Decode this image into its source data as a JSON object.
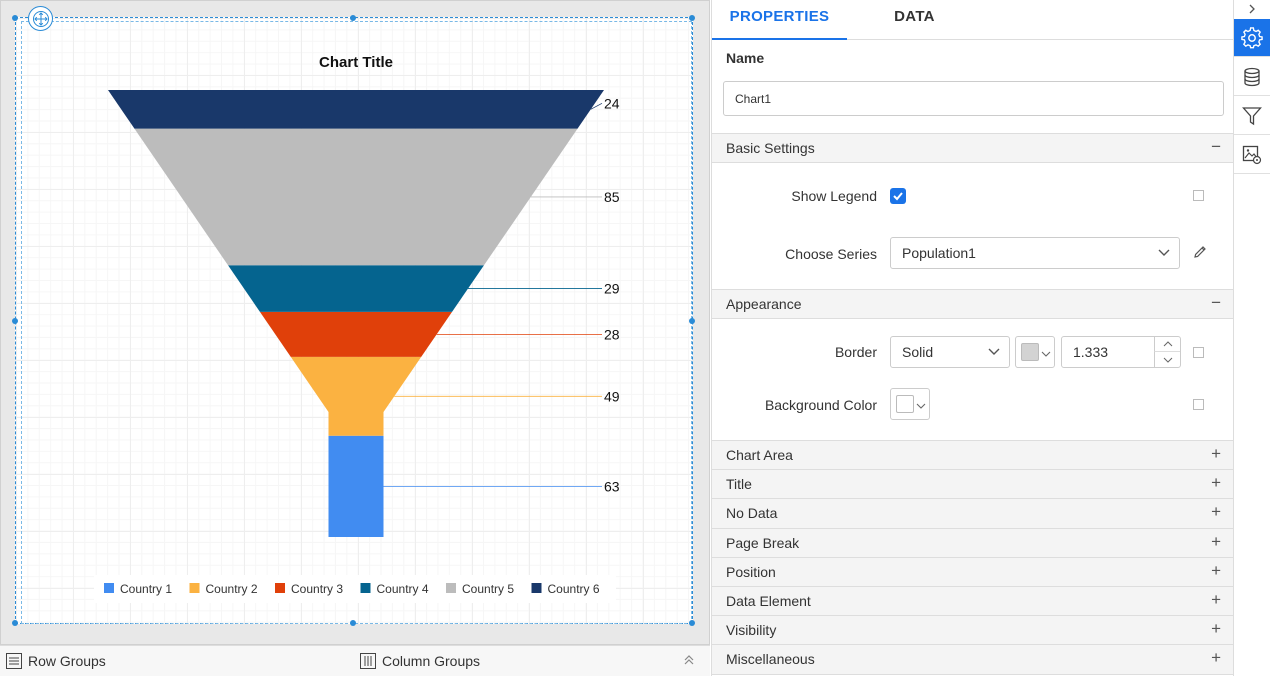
{
  "chart_data": {
    "type": "funnel",
    "title": "Chart Title",
    "categories": [
      "Country 1",
      "Country 2",
      "Country 3",
      "Country 4",
      "Country 5",
      "Country 6"
    ],
    "values": [
      63,
      49,
      28,
      29,
      85,
      24
    ],
    "colors": [
      "#418cf1",
      "#fbb241",
      "#e0400a",
      "#05648f",
      "#bcbcbc",
      "#19386a"
    ],
    "legend_position": "bottom",
    "data_labels": true
  },
  "bottom_bar": {
    "row_groups": "Row Groups",
    "column_groups": "Column Groups"
  },
  "panel": {
    "tabs": {
      "properties": "PROPERTIES",
      "data": "DATA"
    },
    "name_label": "Name",
    "name_value": "Chart1",
    "sections": {
      "basic_settings": "Basic Settings",
      "appearance": "Appearance"
    },
    "basic": {
      "show_legend_label": "Show Legend",
      "show_legend": true,
      "choose_series_label": "Choose Series",
      "choose_series_value": "Population1"
    },
    "appearance": {
      "border_label": "Border",
      "border_style": "Solid",
      "border_color": "#d3d3d3",
      "border_width": "1.333",
      "background_color_label": "Background Color",
      "background_color": "#ffffff"
    },
    "collapsed_sections": [
      "Chart Area",
      "Title",
      "No Data",
      "Page Break",
      "Position",
      "Data Element",
      "Visibility",
      "Miscellaneous"
    ],
    "collapse_symbol": "−",
    "expand_symbol": "+"
  },
  "right_bar": {
    "icons": [
      "chevron-right-icon",
      "gear-icon",
      "database-icon",
      "filter-icon",
      "image-settings-icon"
    ],
    "accent": "#1a73e8"
  }
}
